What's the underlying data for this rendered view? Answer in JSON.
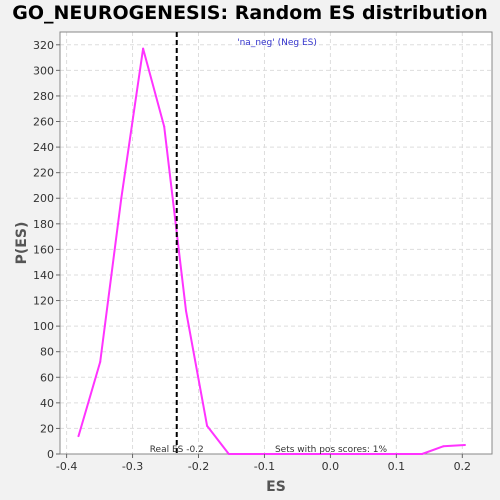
{
  "chart_data": {
    "type": "line",
    "title": "GO_NEUROGENESIS: Random ES distribution",
    "xlabel": "ES",
    "ylabel": "P(ES)",
    "xlim": [
      -0.41,
      0.245
    ],
    "ylim": [
      0,
      330
    ],
    "x_ticks": [
      -0.4,
      -0.3,
      -0.2,
      -0.1,
      0.0,
      0.1,
      0.2
    ],
    "x_tick_labels": [
      "-0.4",
      "-0.3",
      "-0.2",
      "-0.1",
      "0.0",
      "0.1",
      "0.2"
    ],
    "y_ticks": [
      0,
      20,
      40,
      60,
      80,
      100,
      120,
      140,
      160,
      180,
      200,
      220,
      240,
      260,
      280,
      300,
      320
    ],
    "y_tick_labels": [
      "0",
      "20",
      "40",
      "60",
      "80",
      "100",
      "120",
      "140",
      "160",
      "180",
      "200",
      "220",
      "240",
      "260",
      "280",
      "300",
      "320"
    ],
    "grid": true,
    "legend_position": "top-center",
    "series": [
      {
        "name": "'na_neg' (Neg ES)",
        "color": "#ff33ff",
        "x": [
          -0.382,
          -0.349,
          -0.317,
          -0.284,
          -0.252,
          -0.219,
          -0.187,
          -0.154,
          -0.122,
          -0.089,
          -0.056,
          -0.024,
          0.009,
          0.041,
          0.074,
          0.106,
          0.139,
          0.171,
          0.204
        ],
        "y": [
          14,
          72,
          200,
          317,
          256,
          112,
          22,
          0,
          0,
          0,
          0,
          0,
          0,
          0,
          0,
          0,
          0,
          6,
          7
        ]
      }
    ],
    "real_es": {
      "value": -0.233,
      "label": "Real ES -0.2",
      "color": "#000000"
    },
    "annotation": "Sets with pos scores: 1%"
  }
}
